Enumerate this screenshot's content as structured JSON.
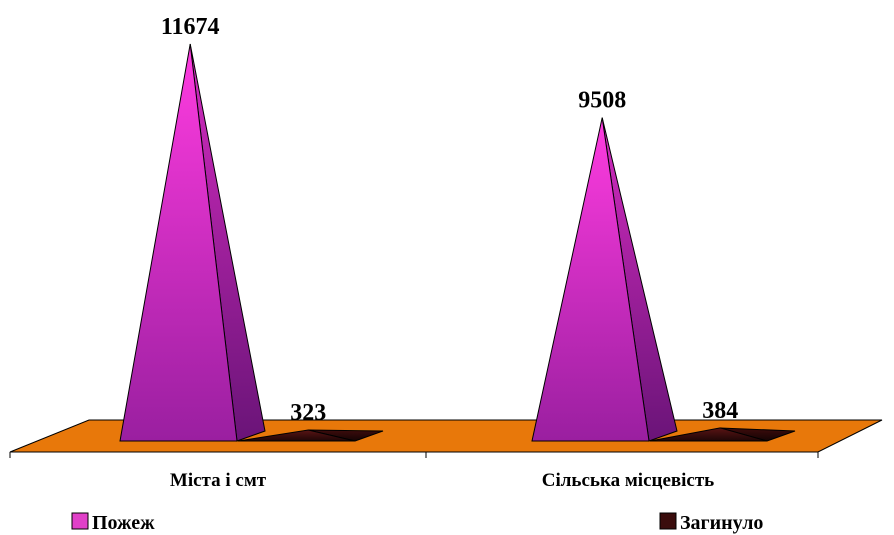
{
  "chart_data": {
    "type": "bar",
    "style": "3d-pyramid",
    "categories": [
      "Міста і смт",
      "Сільська місцевість"
    ],
    "series": [
      {
        "name": "Пожеж",
        "values": [
          11674,
          9508
        ],
        "color": "#e040c8"
      },
      {
        "name": "Загинуло",
        "values": [
          323,
          384
        ],
        "color": "#3a0c0c"
      }
    ],
    "floor_color": "#e8780a",
    "legend_position": "bottom",
    "ylim": [
      0,
      11674
    ]
  }
}
